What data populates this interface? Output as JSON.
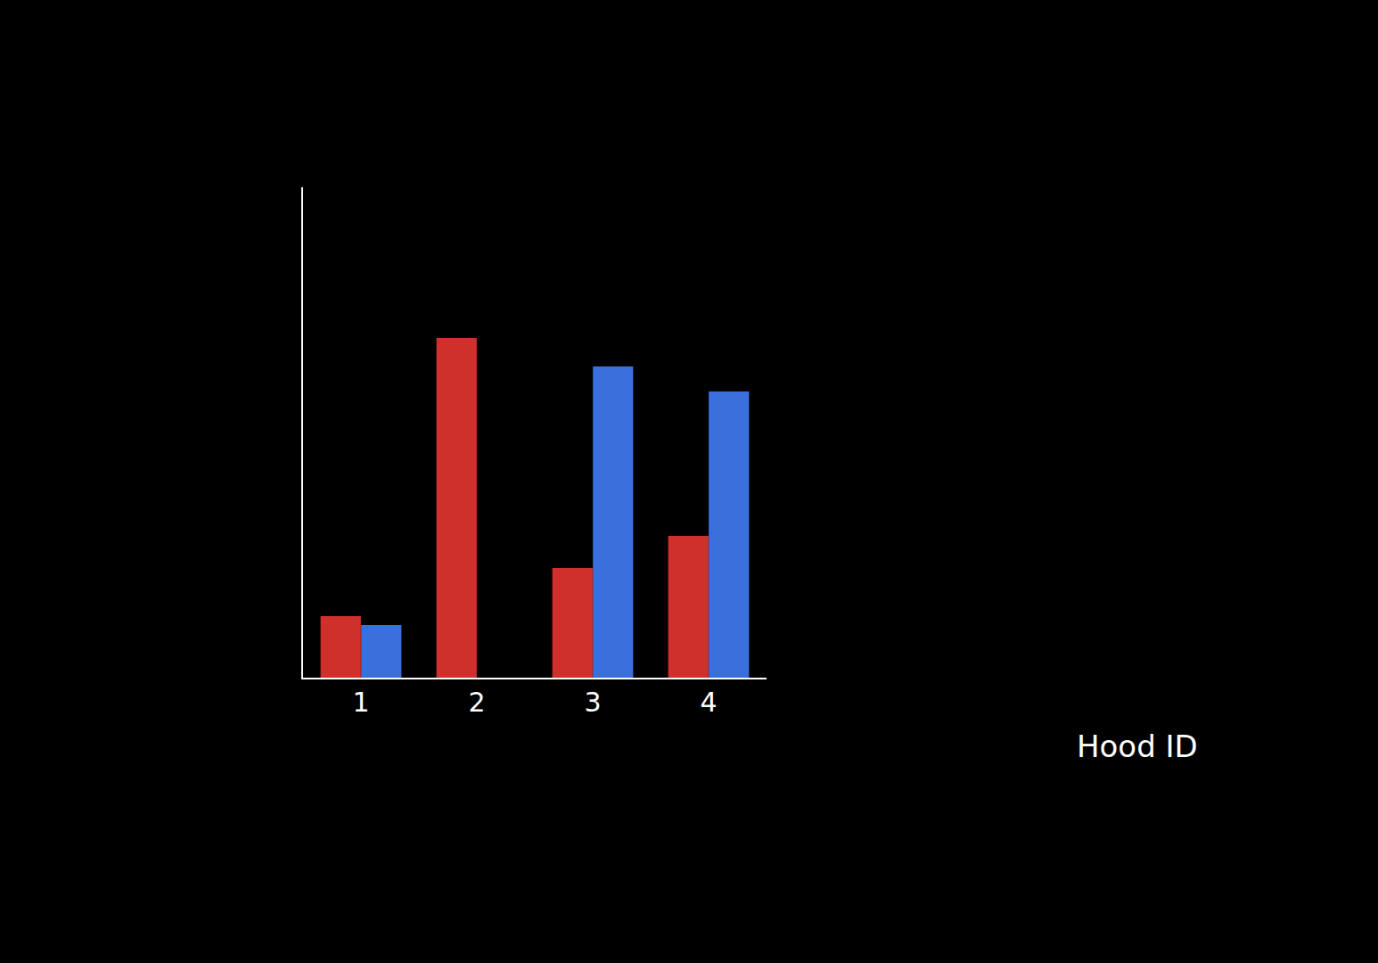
{
  "chart_data": {
    "type": "bar",
    "xlabel": "Hood ID",
    "categories": [
      "1",
      "2",
      "3",
      "4"
    ],
    "series": [
      {
        "color": "#d0302c",
        "values": [
          6.8,
          38,
          12.2,
          15.8
        ]
      },
      {
        "color": "#3a6fdc",
        "values": [
          5.8,
          null,
          34.8,
          32
        ]
      }
    ],
    "ylim": [
      0,
      55
    ],
    "grid": false,
    "tick_labels": "x"
  }
}
